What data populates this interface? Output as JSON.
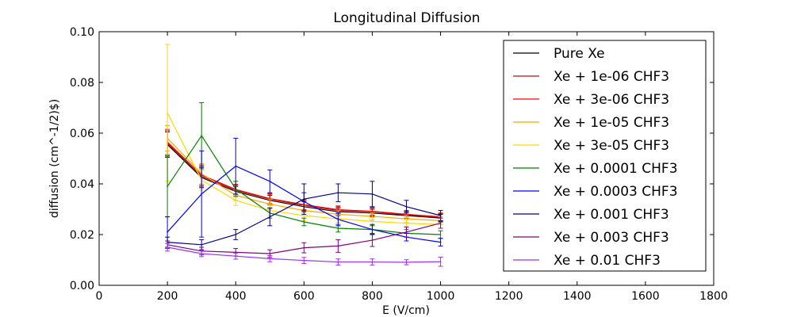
{
  "chart_data": {
    "type": "line",
    "title": "Longitudinal Diffusion",
    "xlabel": "E (V/cm)",
    "ylabel": "diffusion (cm^-1/2)$)",
    "xlim": [
      0,
      1800
    ],
    "ylim": [
      0,
      0.1
    ],
    "xticks": [
      "0",
      "200",
      "400",
      "600",
      "800",
      "1000",
      "1200",
      "1400",
      "1600",
      "1800"
    ],
    "yticks": [
      "0.00",
      "0.02",
      "0.04",
      "0.06",
      "0.08",
      "0.10"
    ],
    "grid": false,
    "legend_position": "top-right",
    "x": [
      200,
      300,
      400,
      500,
      600,
      700,
      800,
      900,
      1000
    ],
    "series": [
      {
        "name": "Pure Xe",
        "color": "#000000",
        "values": [
          0.0555,
          0.0425,
          0.037,
          0.0335,
          0.031,
          0.029,
          0.0285,
          0.0275,
          0.0265
        ],
        "errors": [
          0.005,
          0.004,
          0.002,
          0.002,
          0.002,
          0.0015,
          0.0015,
          0.0015,
          0.0015
        ]
      },
      {
        "name": "Xe + 1e-06 CHF3",
        "color": "#b01010",
        "values": [
          0.056,
          0.043,
          0.0375,
          0.034,
          0.0315,
          0.0295,
          0.029,
          0.0278,
          0.0268
        ],
        "errors": [
          0.005,
          0.004,
          0.002,
          0.002,
          0.002,
          0.0015,
          0.0015,
          0.0015,
          0.0015
        ]
      },
      {
        "name": "Xe + 3e-06 CHF3",
        "color": "#ff0000",
        "values": [
          0.0565,
          0.0435,
          0.0378,
          0.0342,
          0.0318,
          0.0298,
          0.0292,
          0.028,
          0.027
        ],
        "errors": [
          0.005,
          0.004,
          0.002,
          0.002,
          0.002,
          0.0015,
          0.0015,
          0.0015,
          0.0015
        ]
      },
      {
        "name": "Xe + 1e-05 CHF3",
        "color": "#ffa500",
        "values": [
          0.058,
          0.044,
          0.0355,
          0.032,
          0.0295,
          0.028,
          0.0272,
          0.0262,
          0.0255
        ],
        "errors": [
          0.005,
          0.004,
          0.002,
          0.002,
          0.002,
          0.0015,
          0.0015,
          0.0015,
          0.0015
        ]
      },
      {
        "name": "Xe + 3e-05 CHF3",
        "color": "#ffd700",
        "values": [
          0.068,
          0.0415,
          0.0335,
          0.0295,
          0.0275,
          0.0262,
          0.0252,
          0.0245,
          0.024
        ],
        "errors": [
          0.027,
          0.004,
          0.002,
          0.002,
          0.002,
          0.0015,
          0.0015,
          0.0015,
          0.0015
        ]
      },
      {
        "name": "Xe + 0.0001 CHF3",
        "color": "#008000",
        "values": [
          0.039,
          0.059,
          0.038,
          0.0285,
          0.025,
          0.0225,
          0.022,
          0.0205,
          0.02
        ],
        "errors": [
          0.012,
          0.013,
          0.003,
          0.002,
          0.0015,
          0.0015,
          0.0015,
          0.0015,
          0.0015
        ]
      },
      {
        "name": "Xe + 0.0003 CHF3",
        "color": "#0000ff",
        "values": [
          0.021,
          0.036,
          0.047,
          0.041,
          0.033,
          0.026,
          0.022,
          0.019,
          0.017
        ],
        "errors": [
          0.006,
          0.017,
          0.011,
          0.0045,
          0.0035,
          0.0025,
          0.002,
          0.0015,
          0.0015
        ]
      },
      {
        "name": "Xe + 0.001 CHF3",
        "color": "#00008b",
        "values": [
          0.017,
          0.016,
          0.02,
          0.027,
          0.034,
          0.0365,
          0.036,
          0.031,
          0.0275
        ],
        "errors": [
          0.002,
          0.002,
          0.002,
          0.0035,
          0.006,
          0.0035,
          0.005,
          0.0025,
          0.002
        ]
      },
      {
        "name": "Xe + 0.003 CHF3",
        "color": "#800080",
        "values": [
          0.016,
          0.0135,
          0.013,
          0.0125,
          0.0148,
          0.0155,
          0.0178,
          0.021,
          0.0245
        ],
        "errors": [
          0.0015,
          0.0015,
          0.0015,
          0.0015,
          0.002,
          0.0025,
          0.0025,
          0.002,
          0.002
        ]
      },
      {
        "name": "Xe + 0.01 CHF3",
        "color": "#9b30ff",
        "values": [
          0.015,
          0.0125,
          0.0115,
          0.0105,
          0.0098,
          0.0092,
          0.0092,
          0.0091,
          0.0093
        ],
        "errors": [
          0.0015,
          0.0012,
          0.0012,
          0.0012,
          0.0012,
          0.0012,
          0.0012,
          0.001,
          0.0018
        ]
      }
    ]
  }
}
